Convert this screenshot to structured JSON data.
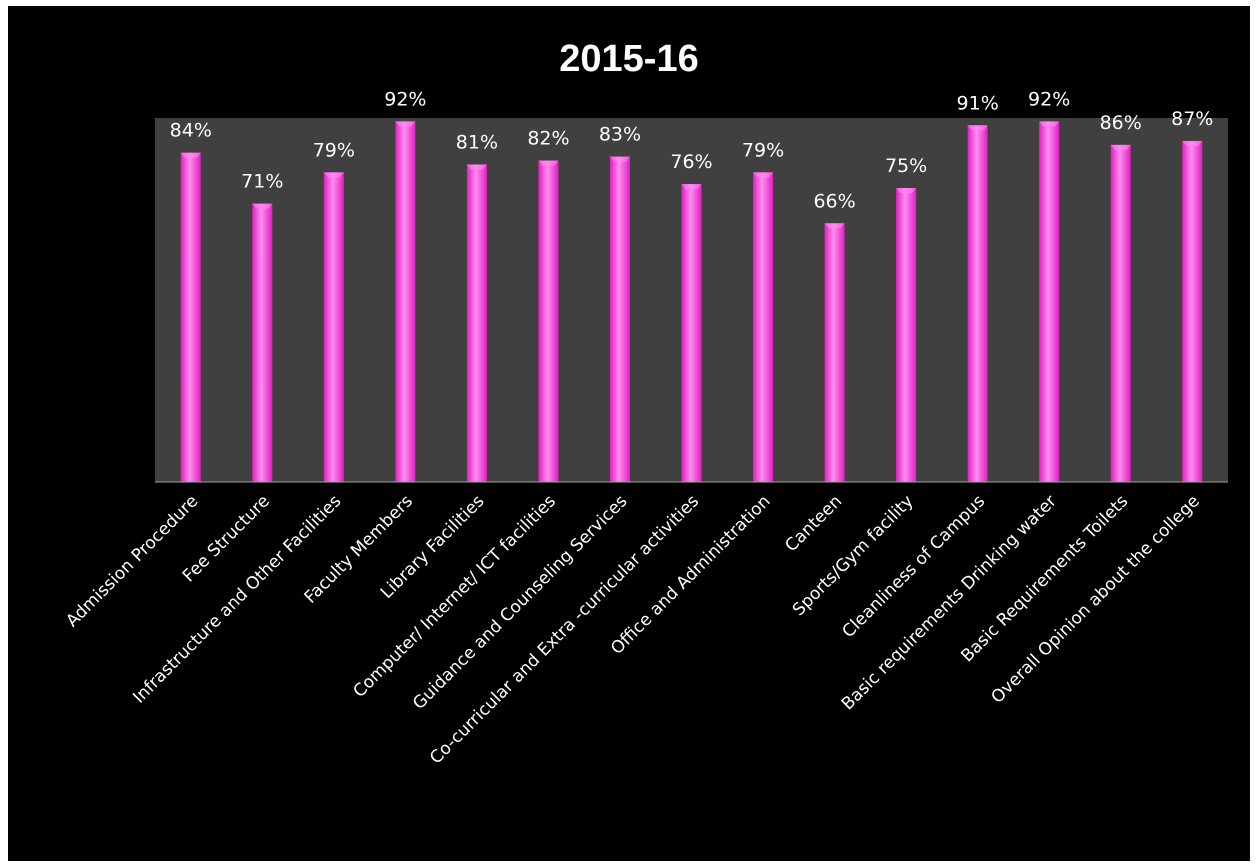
{
  "chart_data": {
    "type": "bar",
    "title": "2015-16",
    "categories": [
      "Admission Procedure",
      "Fee Structure",
      "Infrastructure and Other Facilities",
      "Faculty Members",
      "Library Facilities",
      "Computer/ Internet/ ICT facilities",
      "Guidance and Counseling Services",
      "Co-curricular and Extra -curricular activities",
      "Office and Administration",
      "Canteen",
      "Sports/Gym facility",
      "Cleanliness of Campus",
      "Basic requirements Drinking water",
      "Basic Requirements Toilets",
      "Overall Opinion about the college"
    ],
    "values": [
      84,
      71,
      79,
      92,
      81,
      82,
      83,
      76,
      79,
      66,
      75,
      91,
      92,
      86,
      87
    ],
    "value_labels": [
      "84%",
      "71%",
      "79%",
      "92%",
      "81%",
      "82%",
      "83%",
      "76%",
      "79%",
      "66%",
      "75%",
      "91%",
      "92%",
      "86%",
      "87%"
    ],
    "xlabel": "",
    "ylabel": "",
    "ylim": [
      0,
      100
    ],
    "grid": false,
    "legend": "none",
    "colors": {
      "background": "#000000",
      "plot_area": "#404040",
      "bar": "#e020c0",
      "bar_highlight": "#ff8cf0",
      "text": "#ffffff",
      "axis": "#a0a0a0"
    }
  }
}
